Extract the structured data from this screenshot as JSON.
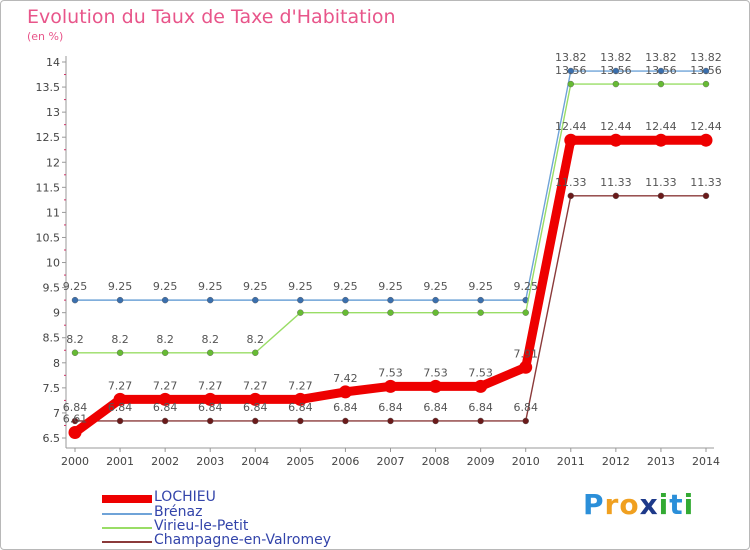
{
  "chart_data": {
    "type": "line",
    "title": "Evolution du Taux de Taxe d'Habitation",
    "subtitle": "(en %)",
    "x": [
      "2000",
      "2001",
      "2002",
      "2003",
      "2004",
      "2005",
      "2006",
      "2007",
      "2008",
      "2009",
      "2010",
      "2011",
      "2012",
      "2013",
      "2014"
    ],
    "ylim": [
      6.5,
      14
    ],
    "yticks": [
      "6.5",
      "7",
      "7.5",
      "8",
      "8.5",
      "9",
      "9.5",
      "10",
      "10.5",
      "11",
      "11.5",
      "12",
      "12.5",
      "13",
      "13.5",
      "14"
    ],
    "grid": false,
    "legend_position": "bottom-left",
    "series": [
      {
        "name": "LOCHIEU",
        "color": "#ee0000",
        "emphasis": true,
        "values": [
          6.61,
          7.27,
          7.27,
          7.27,
          7.27,
          7.27,
          7.42,
          7.53,
          7.53,
          7.53,
          7.91,
          12.44,
          12.44,
          12.44,
          12.44
        ],
        "labels": [
          "6.61",
          "7.27",
          "7.27",
          "7.27",
          "7.27",
          "7.27",
          "7.42",
          "7.53",
          "7.53",
          "7.53",
          "7.91",
          "12.44",
          "12.44",
          "12.44",
          "12.44"
        ]
      },
      {
        "name": "Brénaz",
        "color": "#6fa3d8",
        "marker": "#3a6fae",
        "values": [
          9.25,
          9.25,
          9.25,
          9.25,
          9.25,
          9.25,
          9.25,
          9.25,
          9.25,
          9.25,
          9.25,
          13.82,
          13.82,
          13.82,
          13.82
        ],
        "labels": [
          "9.25",
          "9.25",
          "9.25",
          "9.25",
          "9.25",
          "9.25",
          "9.25",
          "9.25",
          "9.25",
          "9.25",
          "9.25",
          "13.82",
          "13.82",
          "13.82",
          "13.82"
        ]
      },
      {
        "name": "Virieu-le-Petit",
        "color": "#99dd66",
        "marker": "#66bb33",
        "values": [
          8.2,
          8.2,
          8.2,
          8.2,
          8.2,
          9,
          9,
          9,
          9,
          9,
          9,
          13.56,
          13.56,
          13.56,
          13.56
        ],
        "labels": [
          "8.2",
          "8.2",
          "8.2",
          "8.2",
          "8.2",
          "",
          "",
          "",
          "",
          "",
          "",
          "13.56",
          "13.56",
          "13.56",
          "13.56"
        ]
      },
      {
        "name": "Champagne-en-Valromey",
        "color": "#8b3a3a",
        "marker": "#6b1a1a",
        "values": [
          6.84,
          6.84,
          6.84,
          6.84,
          6.84,
          6.84,
          6.84,
          6.84,
          6.84,
          6.84,
          6.84,
          11.33,
          11.33,
          11.33,
          11.33
        ],
        "labels": [
          "6.84",
          "6.84",
          "6.84",
          "6.84",
          "6.84",
          "6.84",
          "6.84",
          "6.84",
          "6.84",
          "6.84",
          "6.84",
          "11.33",
          "11.33",
          "11.33",
          "11.33"
        ]
      }
    ]
  },
  "logo": {
    "letters": [
      "P",
      "r",
      "o",
      "x",
      "i",
      "t",
      "i"
    ],
    "colors": [
      "#2b8fd9",
      "#f0a020",
      "#f0a020",
      "#1e3a8a",
      "#33aa33",
      "#2b8fd9",
      "#33aa33"
    ]
  }
}
